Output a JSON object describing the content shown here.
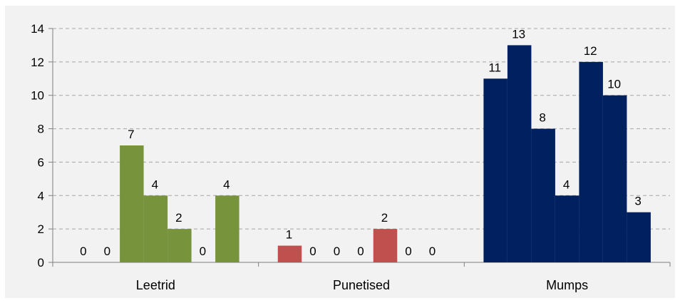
{
  "chart_data": {
    "type": "bar",
    "title": "",
    "xlabel": "",
    "ylabel": "",
    "ylim": [
      0,
      14
    ],
    "yticks": [
      0,
      2,
      4,
      6,
      8,
      10,
      12,
      14
    ],
    "grid": true,
    "legend": "none",
    "groups": [
      {
        "label": "Leetrid",
        "color": "#77933c",
        "values": [
          0,
          0,
          7,
          4,
          2,
          0,
          4
        ]
      },
      {
        "label": "Punetised",
        "color": "#c0504d",
        "values": [
          1,
          0,
          0,
          0,
          2,
          0,
          0
        ]
      },
      {
        "label": "Mumps",
        "color": "#002060",
        "values": [
          11,
          13,
          8,
          4,
          12,
          10,
          3
        ]
      }
    ]
  }
}
